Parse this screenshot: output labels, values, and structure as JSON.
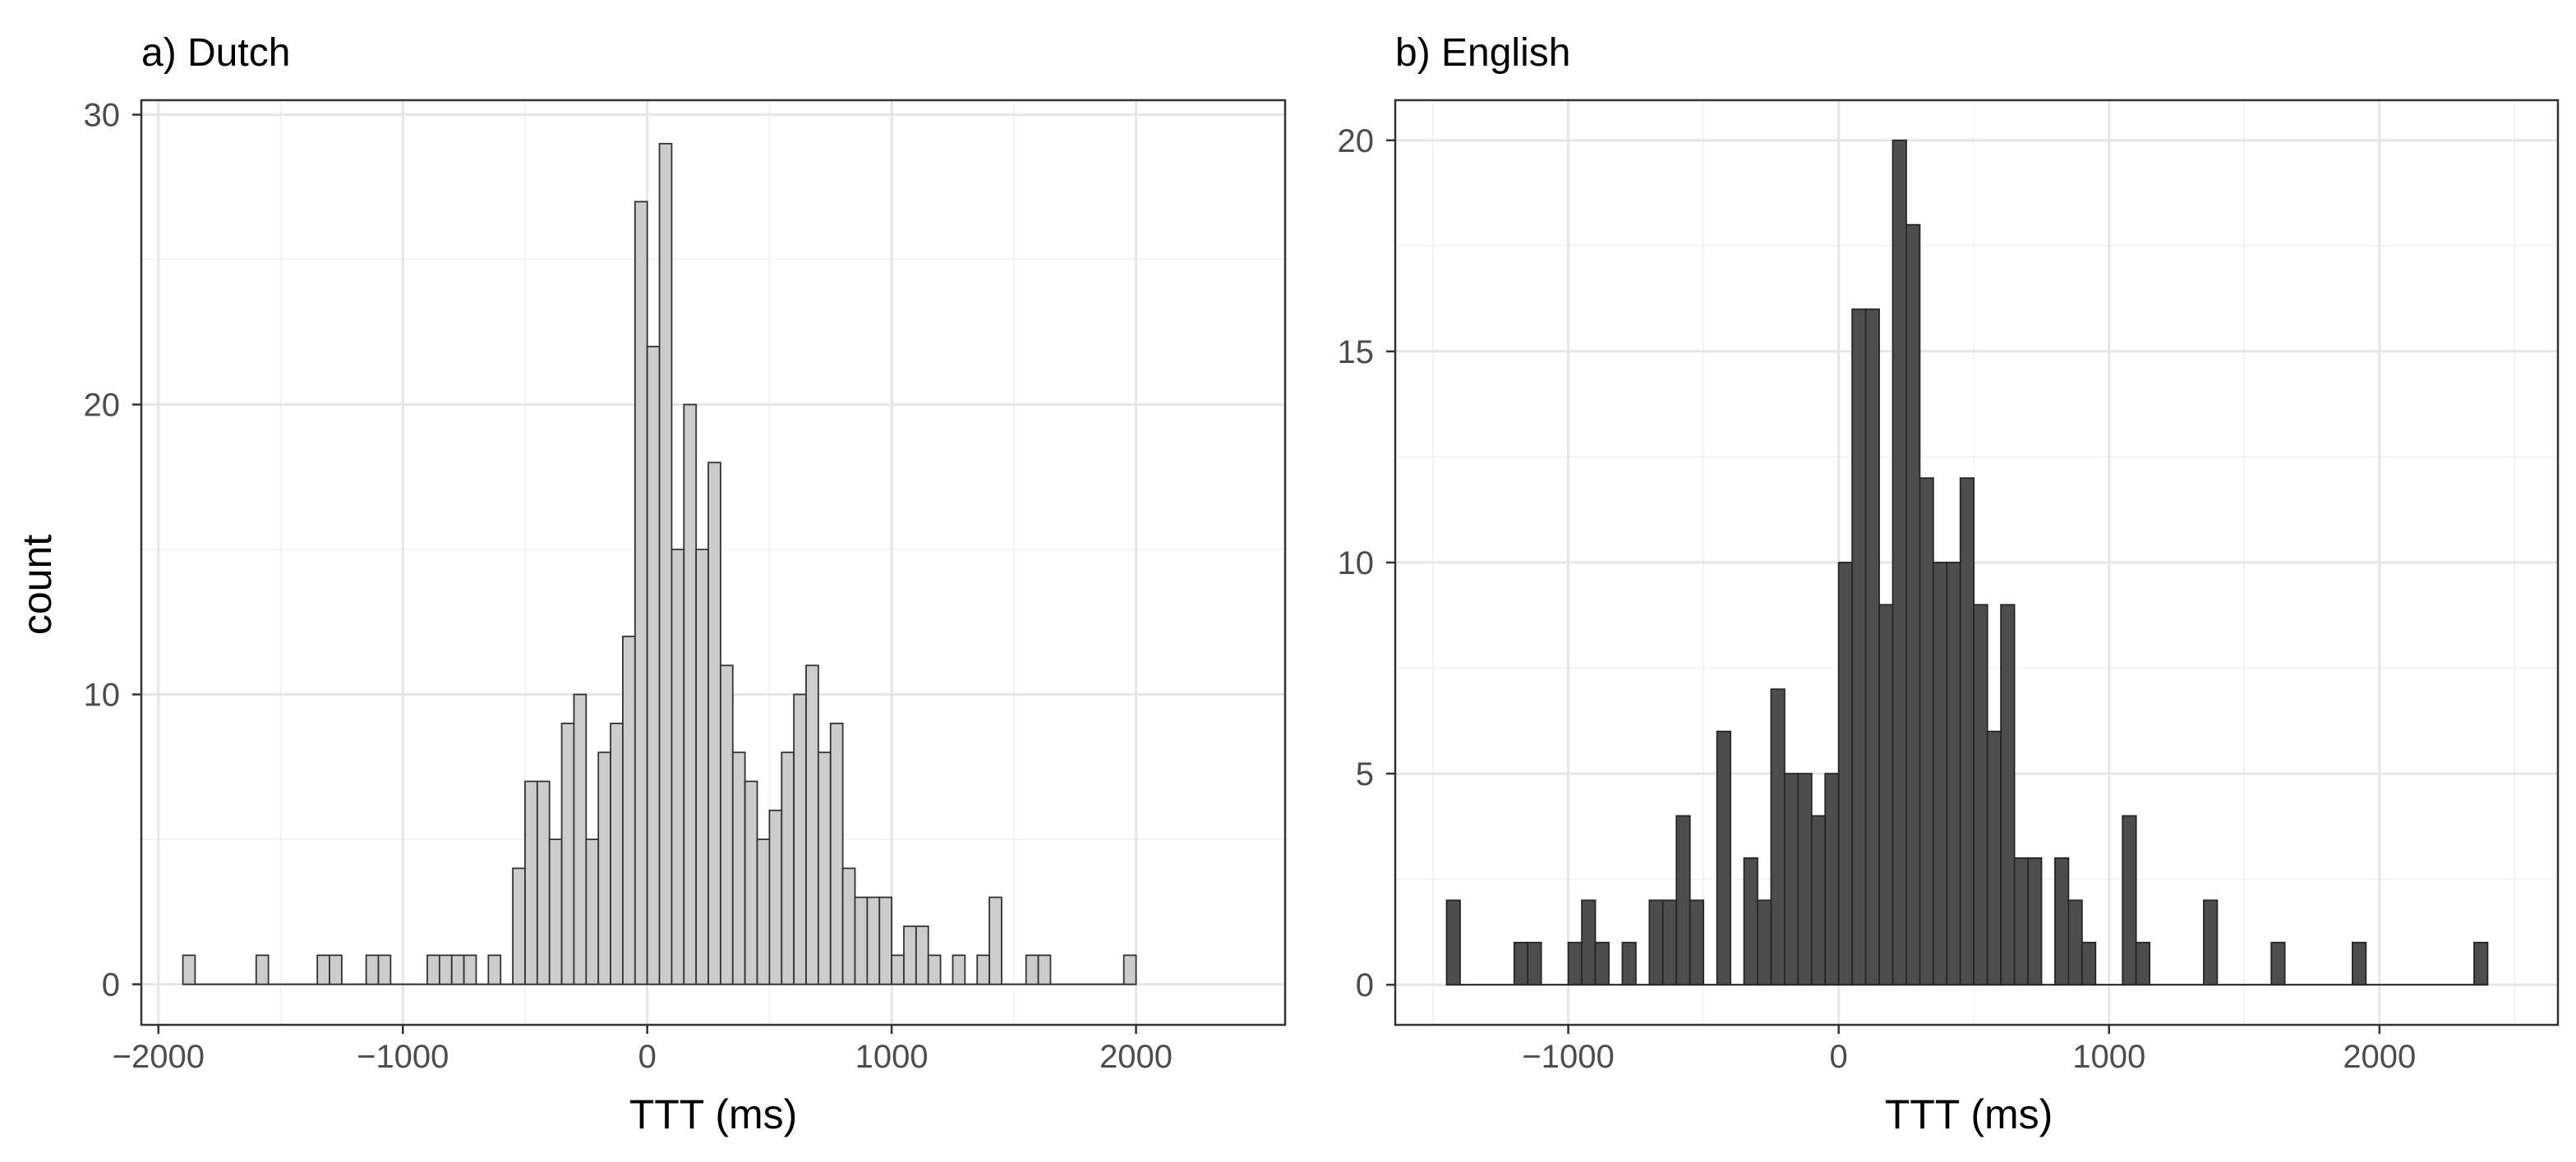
{
  "chart_data": [
    {
      "type": "bar",
      "title": "a) Dutch",
      "xlabel": "TTT (ms)",
      "ylabel": "count",
      "xlim": [
        -2070,
        2610
      ],
      "ylim": [
        -1.4,
        30.5
      ],
      "x_ticks": [
        -2000,
        -1000,
        0,
        1000,
        2000
      ],
      "x_tick_labels": [
        "−2000",
        "−1000",
        "0",
        "1000",
        "2000"
      ],
      "y_ticks": [
        0,
        10,
        20,
        30
      ],
      "y_tick_labels": [
        "0",
        "10",
        "20",
        "30"
      ],
      "x_minor_breaks": [
        -1500,
        -500,
        500,
        1500
      ],
      "y_minor_breaks": [
        5,
        15,
        25
      ],
      "grid": true,
      "bin_width": 50,
      "fill_color": "#cccccc",
      "outline_color": "#333333",
      "bins": [
        {
          "x": -1900,
          "count": 1
        },
        {
          "x": -1600,
          "count": 1
        },
        {
          "x": -1350,
          "count": 1
        },
        {
          "x": -1300,
          "count": 1
        },
        {
          "x": -1150,
          "count": 1
        },
        {
          "x": -1100,
          "count": 1
        },
        {
          "x": -900,
          "count": 1
        },
        {
          "x": -850,
          "count": 1
        },
        {
          "x": -800,
          "count": 1
        },
        {
          "x": -750,
          "count": 1
        },
        {
          "x": -650,
          "count": 1
        },
        {
          "x": -550,
          "count": 4
        },
        {
          "x": -500,
          "count": 7
        },
        {
          "x": -450,
          "count": 7
        },
        {
          "x": -400,
          "count": 5
        },
        {
          "x": -350,
          "count": 9
        },
        {
          "x": -300,
          "count": 10
        },
        {
          "x": -250,
          "count": 5
        },
        {
          "x": -200,
          "count": 8
        },
        {
          "x": -150,
          "count": 9
        },
        {
          "x": -100,
          "count": 12
        },
        {
          "x": -50,
          "count": 27
        },
        {
          "x": 0,
          "count": 22
        },
        {
          "x": 50,
          "count": 29
        },
        {
          "x": 100,
          "count": 15
        },
        {
          "x": 150,
          "count": 20
        },
        {
          "x": 200,
          "count": 15
        },
        {
          "x": 250,
          "count": 18
        },
        {
          "x": 300,
          "count": 11
        },
        {
          "x": 350,
          "count": 8
        },
        {
          "x": 400,
          "count": 7
        },
        {
          "x": 450,
          "count": 5
        },
        {
          "x": 500,
          "count": 6
        },
        {
          "x": 550,
          "count": 8
        },
        {
          "x": 600,
          "count": 10
        },
        {
          "x": 650,
          "count": 11
        },
        {
          "x": 700,
          "count": 8
        },
        {
          "x": 750,
          "count": 9
        },
        {
          "x": 800,
          "count": 4
        },
        {
          "x": 850,
          "count": 3
        },
        {
          "x": 900,
          "count": 3
        },
        {
          "x": 950,
          "count": 3
        },
        {
          "x": 1000,
          "count": 1
        },
        {
          "x": 1050,
          "count": 2
        },
        {
          "x": 1100,
          "count": 2
        },
        {
          "x": 1150,
          "count": 1
        },
        {
          "x": 1250,
          "count": 1
        },
        {
          "x": 1350,
          "count": 1
        },
        {
          "x": 1400,
          "count": 3
        },
        {
          "x": 1550,
          "count": 1
        },
        {
          "x": 1600,
          "count": 1
        },
        {
          "x": 1950,
          "count": 1
        }
      ]
    },
    {
      "type": "bar",
      "title": "b) English",
      "xlabel": "TTT (ms)",
      "ylabel": "",
      "xlim": [
        -1640,
        2660
      ],
      "ylim": [
        -0.95,
        20.95
      ],
      "x_ticks": [
        -1000,
        0,
        1000,
        2000
      ],
      "x_tick_labels": [
        "−1000",
        "0",
        "1000",
        "2000"
      ],
      "y_ticks": [
        0,
        5,
        10,
        15,
        20
      ],
      "y_tick_labels": [
        "0",
        "5",
        "10",
        "15",
        "20"
      ],
      "x_minor_breaks": [
        -1500,
        -500,
        500,
        1500,
        2500
      ],
      "y_minor_breaks": [
        2.5,
        7.5,
        12.5,
        17.5
      ],
      "grid": true,
      "bin_width": 50,
      "fill_color": "#4d4d4d",
      "outline_color": "#262626",
      "bins": [
        {
          "x": -1450,
          "count": 2
        },
        {
          "x": -1200,
          "count": 1
        },
        {
          "x": -1150,
          "count": 1
        },
        {
          "x": -1000,
          "count": 1
        },
        {
          "x": -950,
          "count": 2
        },
        {
          "x": -900,
          "count": 1
        },
        {
          "x": -800,
          "count": 1
        },
        {
          "x": -700,
          "count": 2
        },
        {
          "x": -650,
          "count": 2
        },
        {
          "x": -600,
          "count": 4
        },
        {
          "x": -550,
          "count": 2
        },
        {
          "x": -450,
          "count": 6
        },
        {
          "x": -350,
          "count": 3
        },
        {
          "x": -300,
          "count": 2
        },
        {
          "x": -250,
          "count": 7
        },
        {
          "x": -200,
          "count": 5
        },
        {
          "x": -150,
          "count": 5
        },
        {
          "x": -100,
          "count": 4
        },
        {
          "x": -50,
          "count": 5
        },
        {
          "x": 0,
          "count": 10
        },
        {
          "x": 50,
          "count": 16
        },
        {
          "x": 100,
          "count": 16
        },
        {
          "x": 150,
          "count": 9
        },
        {
          "x": 200,
          "count": 20
        },
        {
          "x": 250,
          "count": 18
        },
        {
          "x": 300,
          "count": 12
        },
        {
          "x": 350,
          "count": 10
        },
        {
          "x": 400,
          "count": 10
        },
        {
          "x": 450,
          "count": 12
        },
        {
          "x": 500,
          "count": 9
        },
        {
          "x": 550,
          "count": 6
        },
        {
          "x": 600,
          "count": 9
        },
        {
          "x": 650,
          "count": 3
        },
        {
          "x": 700,
          "count": 3
        },
        {
          "x": 800,
          "count": 3
        },
        {
          "x": 850,
          "count": 2
        },
        {
          "x": 900,
          "count": 1
        },
        {
          "x": 1050,
          "count": 4
        },
        {
          "x": 1100,
          "count": 1
        },
        {
          "x": 1350,
          "count": 2
        },
        {
          "x": 1600,
          "count": 1
        },
        {
          "x": 1900,
          "count": 1
        },
        {
          "x": 2350,
          "count": 1
        }
      ]
    }
  ]
}
